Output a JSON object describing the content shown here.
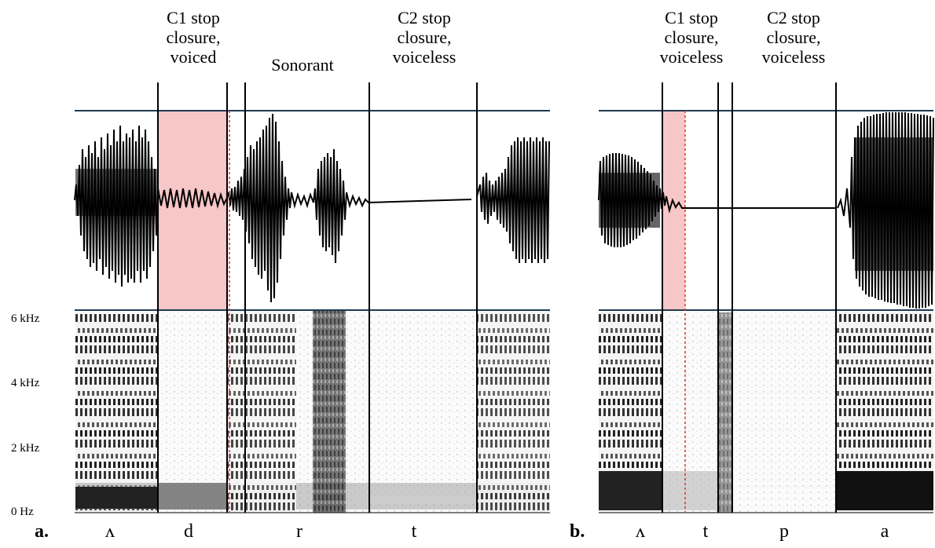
{
  "panel_a": {
    "letter": "a.",
    "top_labels": {
      "c1": [
        "C1 stop",
        "closure,",
        "voiced"
      ],
      "sonorant": [
        "Sonorant"
      ],
      "c2": [
        "C2 stop",
        "closure,",
        "voiceless"
      ]
    },
    "y_ticks": [
      "6 kHz",
      "4 kHz",
      "2 kHz",
      "0 Hz"
    ],
    "segments": [
      "ʌ",
      "d",
      "r",
      "t"
    ]
  },
  "panel_b": {
    "letter": "b.",
    "top_labels": {
      "c1": [
        "C1 stop",
        "closure,",
        "voiceless"
      ],
      "c2": [
        "C2 stop",
        "closure,",
        "voiceless"
      ]
    },
    "segments": [
      "ʌ",
      "t",
      "p",
      "a"
    ]
  },
  "colors": {
    "highlight": "#f7c6c6",
    "boundary": "#000000",
    "frame": "#1f3a4f",
    "dotted": "#e03030"
  }
}
